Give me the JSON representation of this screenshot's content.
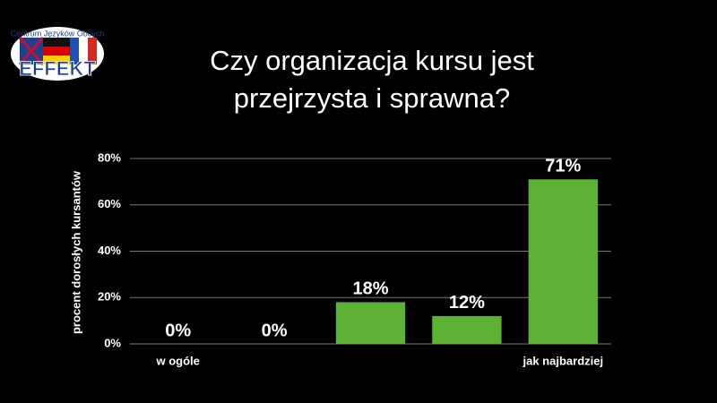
{
  "logo": {
    "caption": "Centrum Języków Obcych",
    "name": "EFFEKT"
  },
  "chart_data": {
    "type": "bar",
    "title": [
      "Czy organizacja kursu jest",
      "przejrzysta i sprawna?"
    ],
    "y_label": "procent dorosłych kursantów",
    "categories": [
      "w ogóle",
      null,
      null,
      null,
      "jak najbardziej"
    ],
    "values": [
      0,
      0,
      18,
      12,
      71
    ],
    "value_labels": [
      "0%",
      "0%",
      "18%",
      "12%",
      "71%"
    ],
    "color": "#5db235",
    "ylim": [
      0,
      80
    ],
    "yticks": [
      {
        "value": 0,
        "label": "0%"
      },
      {
        "value": 20,
        "label": "20%"
      },
      {
        "value": 40,
        "label": "40%"
      },
      {
        "value": 60,
        "label": "60%"
      },
      {
        "value": 80,
        "label": "80%"
      }
    ],
    "grid": true
  }
}
